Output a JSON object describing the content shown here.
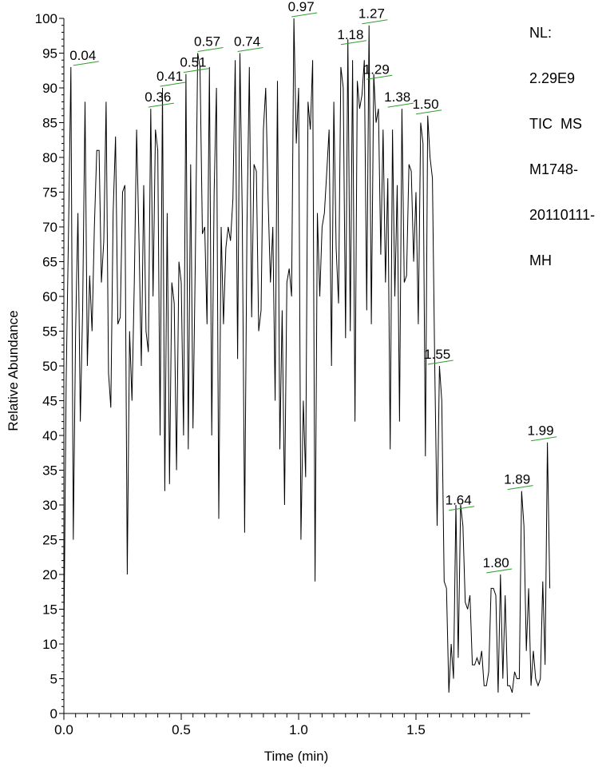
{
  "info": {
    "nl_label": "NL:",
    "nl_value": "2.29E9",
    "scan_type": "TIC  MS",
    "sample_line1": "M1748-",
    "sample_line2": "20110111-",
    "sample_line3": "MH"
  },
  "colors": {
    "trace": "#000000",
    "peak_marker": "#2e9e2e",
    "axis": "#000000",
    "background": "#ffffff"
  },
  "chart_data": {
    "type": "line",
    "title": "",
    "xlabel": "Time (min)",
    "ylabel": "Relative Abundance",
    "xlim": [
      0.0,
      2.0
    ],
    "ylim": [
      0,
      100
    ],
    "x_ticks": [
      {
        "value": 0.0,
        "label": "0.0"
      },
      {
        "value": 0.5,
        "label": "0.5"
      },
      {
        "value": 1.0,
        "label": "1.0"
      },
      {
        "value": 1.5,
        "label": "1.5"
      }
    ],
    "y_ticks": [
      {
        "value": 0,
        "label": "0"
      },
      {
        "value": 5,
        "label": "5"
      },
      {
        "value": 10,
        "label": "10"
      },
      {
        "value": 15,
        "label": "15"
      },
      {
        "value": 20,
        "label": "20"
      },
      {
        "value": 25,
        "label": "25"
      },
      {
        "value": 30,
        "label": "30"
      },
      {
        "value": 35,
        "label": "35"
      },
      {
        "value": 40,
        "label": "40"
      },
      {
        "value": 45,
        "label": "45"
      },
      {
        "value": 50,
        "label": "50"
      },
      {
        "value": 55,
        "label": "55"
      },
      {
        "value": 60,
        "label": "60"
      },
      {
        "value": 65,
        "label": "65"
      },
      {
        "value": 70,
        "label": "70"
      },
      {
        "value": 75,
        "label": "75"
      },
      {
        "value": 80,
        "label": "80"
      },
      {
        "value": 85,
        "label": "85"
      },
      {
        "value": 90,
        "label": "90"
      },
      {
        "value": 95,
        "label": "95"
      },
      {
        "value": 100,
        "label": "100"
      }
    ],
    "grid": false,
    "series": [
      {
        "points": [
          [
            0.0,
            10
          ],
          [
            0.01,
            48
          ],
          [
            0.02,
            70
          ],
          [
            0.03,
            93
          ],
          [
            0.04,
            25
          ],
          [
            0.05,
            55
          ],
          [
            0.06,
            72
          ],
          [
            0.07,
            42
          ],
          [
            0.08,
            58
          ],
          [
            0.09,
            88
          ],
          [
            0.1,
            50
          ],
          [
            0.11,
            63
          ],
          [
            0.12,
            55
          ],
          [
            0.13,
            70
          ],
          [
            0.14,
            81
          ],
          [
            0.15,
            81
          ],
          [
            0.16,
            62
          ],
          [
            0.17,
            68
          ],
          [
            0.18,
            88
          ],
          [
            0.19,
            49
          ],
          [
            0.2,
            44
          ],
          [
            0.21,
            72
          ],
          [
            0.22,
            83
          ],
          [
            0.23,
            56
          ],
          [
            0.24,
            57
          ],
          [
            0.25,
            75
          ],
          [
            0.26,
            76
          ],
          [
            0.27,
            20
          ],
          [
            0.28,
            55
          ],
          [
            0.29,
            45
          ],
          [
            0.3,
            62
          ],
          [
            0.31,
            84
          ],
          [
            0.32,
            68
          ],
          [
            0.33,
            50
          ],
          [
            0.34,
            76
          ],
          [
            0.35,
            55
          ],
          [
            0.36,
            52
          ],
          [
            0.37,
            87
          ],
          [
            0.38,
            60
          ],
          [
            0.39,
            84
          ],
          [
            0.4,
            81
          ],
          [
            0.41,
            40
          ],
          [
            0.42,
            90
          ],
          [
            0.43,
            32
          ],
          [
            0.44,
            72
          ],
          [
            0.45,
            33
          ],
          [
            0.46,
            62
          ],
          [
            0.47,
            59
          ],
          [
            0.48,
            35
          ],
          [
            0.49,
            65
          ],
          [
            0.5,
            62
          ],
          [
            0.51,
            40
          ],
          [
            0.52,
            92
          ],
          [
            0.53,
            38
          ],
          [
            0.54,
            79
          ],
          [
            0.55,
            41
          ],
          [
            0.56,
            65
          ],
          [
            0.57,
            95
          ],
          [
            0.58,
            93
          ],
          [
            0.59,
            69
          ],
          [
            0.6,
            70
          ],
          [
            0.61,
            56
          ],
          [
            0.62,
            93
          ],
          [
            0.63,
            40
          ],
          [
            0.64,
            75
          ],
          [
            0.65,
            90
          ],
          [
            0.66,
            28
          ],
          [
            0.67,
            70
          ],
          [
            0.68,
            56
          ],
          [
            0.69,
            67
          ],
          [
            0.7,
            70
          ],
          [
            0.71,
            68
          ],
          [
            0.72,
            74
          ],
          [
            0.73,
            94
          ],
          [
            0.74,
            51
          ],
          [
            0.75,
            95
          ],
          [
            0.76,
            72
          ],
          [
            0.77,
            26
          ],
          [
            0.78,
            70
          ],
          [
            0.79,
            93
          ],
          [
            0.8,
            57
          ],
          [
            0.81,
            79
          ],
          [
            0.82,
            78
          ],
          [
            0.83,
            55
          ],
          [
            0.84,
            58
          ],
          [
            0.85,
            84
          ],
          [
            0.86,
            90
          ],
          [
            0.87,
            74
          ],
          [
            0.88,
            62
          ],
          [
            0.89,
            70
          ],
          [
            0.9,
            45
          ],
          [
            0.91,
            91
          ],
          [
            0.92,
            38
          ],
          [
            0.93,
            58
          ],
          [
            0.94,
            30
          ],
          [
            0.95,
            62
          ],
          [
            0.96,
            64
          ],
          [
            0.97,
            60
          ],
          [
            0.98,
            100
          ],
          [
            0.99,
            82
          ],
          [
            1.0,
            90
          ],
          [
            1.01,
            25
          ],
          [
            1.02,
            45
          ],
          [
            1.03,
            34
          ],
          [
            1.04,
            88
          ],
          [
            1.05,
            84
          ],
          [
            1.06,
            94
          ],
          [
            1.07,
            19
          ],
          [
            1.08,
            72
          ],
          [
            1.09,
            60
          ],
          [
            1.1,
            70
          ],
          [
            1.11,
            72
          ],
          [
            1.12,
            78
          ],
          [
            1.13,
            84
          ],
          [
            1.14,
            50
          ],
          [
            1.15,
            88
          ],
          [
            1.16,
            67
          ],
          [
            1.17,
            59
          ],
          [
            1.18,
            93
          ],
          [
            1.19,
            90
          ],
          [
            1.2,
            54
          ],
          [
            1.21,
            97
          ],
          [
            1.22,
            55
          ],
          [
            1.23,
            94
          ],
          [
            1.24,
            42
          ],
          [
            1.25,
            91
          ],
          [
            1.26,
            87
          ],
          [
            1.27,
            89
          ],
          [
            1.28,
            94
          ],
          [
            1.29,
            58
          ],
          [
            1.3,
            99
          ],
          [
            1.31,
            56
          ],
          [
            1.32,
            92
          ],
          [
            1.33,
            85
          ],
          [
            1.34,
            87
          ],
          [
            1.35,
            66
          ],
          [
            1.36,
            84
          ],
          [
            1.37,
            62
          ],
          [
            1.38,
            77
          ],
          [
            1.39,
            38
          ],
          [
            1.4,
            84
          ],
          [
            1.41,
            60
          ],
          [
            1.42,
            76
          ],
          [
            1.43,
            42
          ],
          [
            1.44,
            87
          ],
          [
            1.45,
            62
          ],
          [
            1.46,
            63
          ],
          [
            1.47,
            79
          ],
          [
            1.48,
            78
          ],
          [
            1.49,
            65
          ],
          [
            1.5,
            75
          ],
          [
            1.51,
            56
          ],
          [
            1.52,
            85
          ],
          [
            1.53,
            82
          ],
          [
            1.54,
            37
          ],
          [
            1.55,
            86
          ],
          [
            1.56,
            80
          ],
          [
            1.57,
            77
          ],
          [
            1.58,
            50
          ],
          [
            1.59,
            27
          ],
          [
            1.6,
            50
          ],
          [
            1.61,
            45
          ],
          [
            1.62,
            19
          ],
          [
            1.63,
            18
          ],
          [
            1.64,
            3
          ],
          [
            1.65,
            10
          ],
          [
            1.66,
            5
          ],
          [
            1.67,
            30
          ],
          [
            1.68,
            8
          ],
          [
            1.69,
            30
          ],
          [
            1.7,
            27
          ],
          [
            1.71,
            16
          ],
          [
            1.72,
            15
          ],
          [
            1.73,
            17
          ],
          [
            1.74,
            7
          ],
          [
            1.75,
            7
          ],
          [
            1.76,
            8
          ],
          [
            1.77,
            7
          ],
          [
            1.78,
            9
          ],
          [
            1.79,
            4
          ],
          [
            1.8,
            4
          ],
          [
            1.81,
            6
          ],
          [
            1.82,
            18
          ],
          [
            1.83,
            18
          ],
          [
            1.84,
            17
          ],
          [
            1.85,
            3
          ],
          [
            1.86,
            20
          ],
          [
            1.87,
            5
          ],
          [
            1.88,
            17
          ],
          [
            1.89,
            4
          ],
          [
            1.9,
            4
          ],
          [
            1.91,
            3
          ],
          [
            1.92,
            6
          ],
          [
            1.93,
            5
          ],
          [
            1.94,
            5
          ],
          [
            1.95,
            32
          ],
          [
            1.96,
            27
          ],
          [
            1.97,
            9
          ],
          [
            1.98,
            18
          ],
          [
            1.99,
            4
          ],
          [
            2.0,
            9
          ],
          [
            2.01,
            5
          ],
          [
            2.02,
            4
          ],
          [
            2.03,
            5
          ],
          [
            2.04,
            19
          ],
          [
            2.05,
            7
          ],
          [
            2.06,
            39
          ],
          [
            2.07,
            18
          ]
        ]
      }
    ],
    "annotations": [
      {
        "label": "0.04",
        "x": 0.04,
        "y": 93
      },
      {
        "label": "0.41",
        "x": 0.41,
        "y": 90
      },
      {
        "label": "0.36",
        "x": 0.36,
        "y": 87
      },
      {
        "label": "0.51",
        "x": 0.51,
        "y": 92
      },
      {
        "label": "0.57",
        "x": 0.57,
        "y": 95
      },
      {
        "label": "0.74",
        "x": 0.74,
        "y": 95
      },
      {
        "label": "0.97",
        "x": 0.97,
        "y": 100
      },
      {
        "label": "1.18",
        "x": 1.18,
        "y": 96
      },
      {
        "label": "1.27",
        "x": 1.27,
        "y": 99
      },
      {
        "label": "1.29",
        "x": 1.29,
        "y": 91
      },
      {
        "label": "1.38",
        "x": 1.38,
        "y": 87
      },
      {
        "label": "1.50",
        "x": 1.5,
        "y": 86
      },
      {
        "label": "1.55",
        "x": 1.55,
        "y": 50
      },
      {
        "label": "1.64",
        "x": 1.64,
        "y": 29
      },
      {
        "label": "1.80",
        "x": 1.8,
        "y": 20
      },
      {
        "label": "1.89",
        "x": 1.89,
        "y": 32
      },
      {
        "label": "1.99",
        "x": 1.99,
        "y": 39
      }
    ]
  }
}
